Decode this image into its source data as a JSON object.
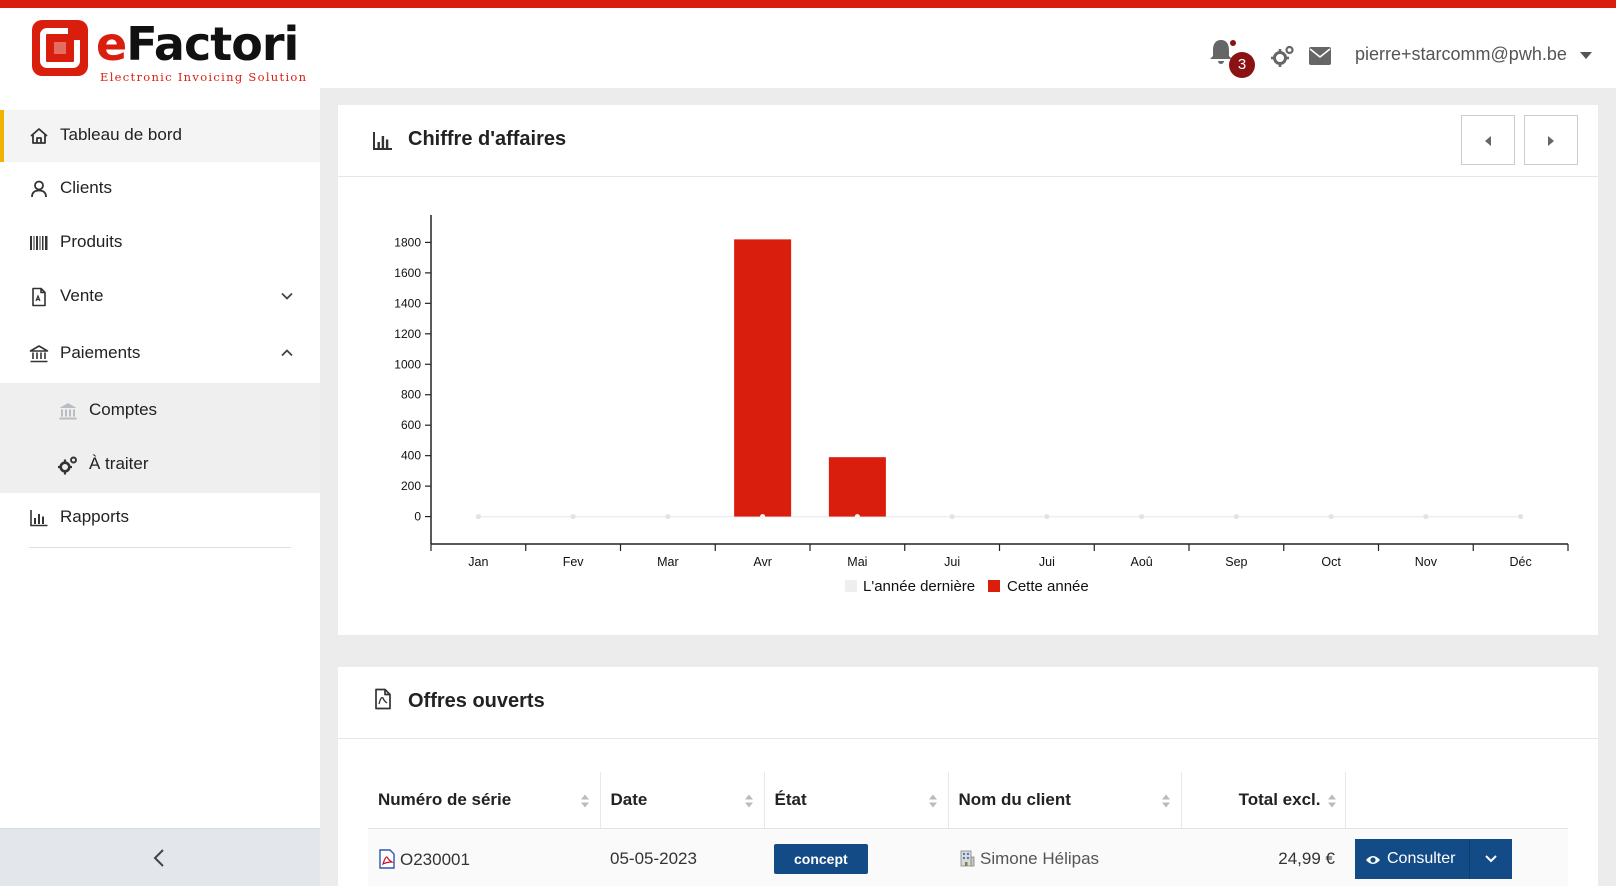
{
  "brand": {
    "logo_text_accent": "e",
    "logo_text_main": "Factori",
    "tagline": "Electronic Invoicing Solution",
    "accent_color": "#d91e0e",
    "primary_color": "#134b86"
  },
  "header": {
    "notification_count": "3",
    "user_email": "pierre+starcomm@pwh.be",
    "icons": [
      "bell-icon",
      "gears-icon",
      "envelope-icon",
      "caret-down-icon"
    ]
  },
  "sidebar": {
    "items": [
      {
        "label": "Tableau de bord",
        "icon": "home-icon",
        "active": true
      },
      {
        "label": "Clients",
        "icon": "user-icon"
      },
      {
        "label": "Produits",
        "icon": "barcode-icon"
      },
      {
        "label": "Vente",
        "icon": "file-pdf-icon",
        "expanded": false
      },
      {
        "label": "Paiements",
        "icon": "bank-icon",
        "expanded": true
      },
      {
        "label": "Rapports",
        "icon": "bar-chart-icon"
      }
    ],
    "sub_items": [
      {
        "label": "Comptes",
        "icon": "bank-icon"
      },
      {
        "label": "À traiter",
        "icon": "gears-icon"
      }
    ]
  },
  "revenue_card": {
    "title": "Chiffre d'affaires"
  },
  "chart_data": {
    "type": "bar",
    "title": "",
    "xlabel": "",
    "ylabel": "",
    "categories": [
      "Jan",
      "Fev",
      "Mar",
      "Avr",
      "Mai",
      "Jui",
      "Jui",
      "Aoû",
      "Sep",
      "Oct",
      "Nov",
      "Déc"
    ],
    "series": [
      {
        "name": "L'année dernière",
        "color": "#eeeeee",
        "values": [
          0,
          0,
          0,
          0,
          0,
          0,
          0,
          0,
          0,
          0,
          0,
          0
        ]
      },
      {
        "name": "Cette année",
        "color": "#d91e0e",
        "values": [
          0,
          0,
          0,
          1820,
          390,
          0,
          0,
          0,
          0,
          0,
          0,
          0
        ]
      }
    ],
    "yticks": [
      0,
      200,
      400,
      600,
      800,
      1000,
      1200,
      1400,
      1600,
      1800
    ],
    "ylim": [
      -180,
      1980
    ],
    "legend": "bottom-center",
    "grid": false
  },
  "offers_card": {
    "title": "Offres ouverts",
    "columns": [
      "Numéro de série",
      "Date",
      "État",
      "Nom du client",
      "Total excl."
    ],
    "rows": [
      {
        "serial": "O230001",
        "date": "05-05-2023",
        "status": "concept",
        "client": "Simone Hélipas",
        "total": "24,99 €",
        "action": "Consulter"
      }
    ]
  }
}
